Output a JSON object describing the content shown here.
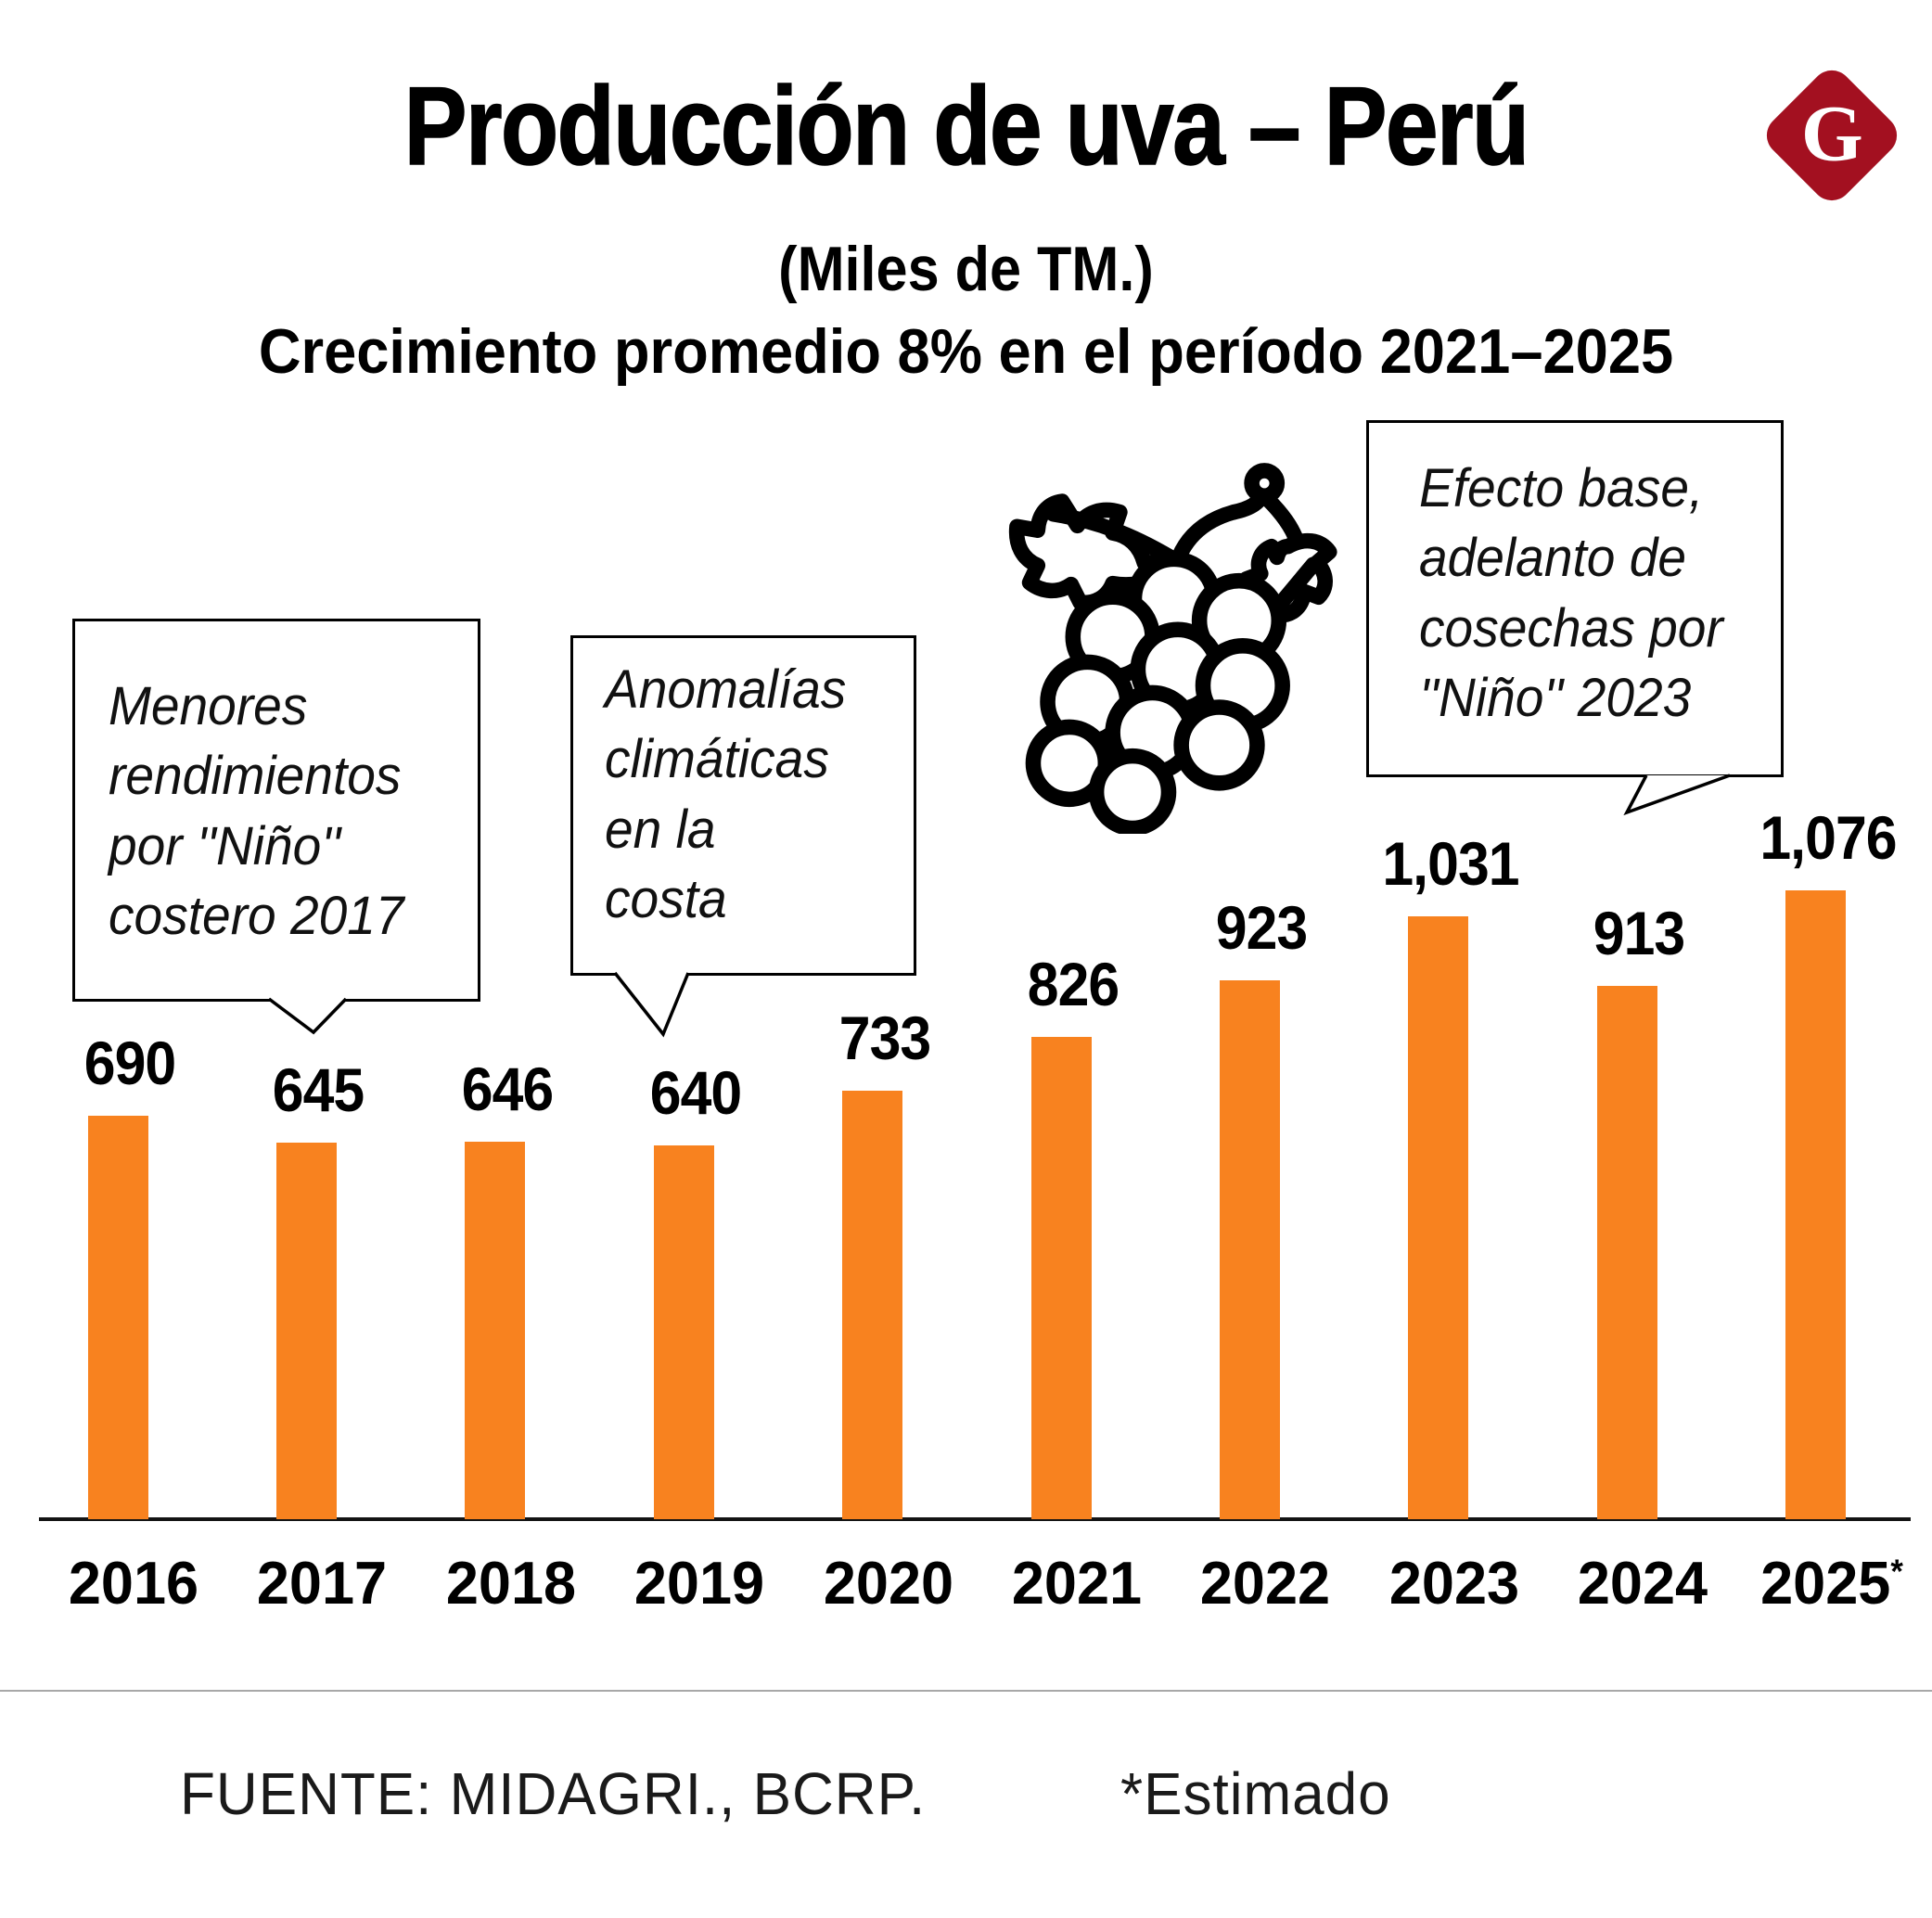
{
  "logo": {
    "letter": "G",
    "color": "#A31020"
  },
  "chart_data": {
    "type": "bar",
    "title": "Producción de uva – Perú",
    "subtitle": "(Miles de TM.)",
    "subtitle2": "Crecimiento promedio 8% en el período 2021–2025",
    "categories": [
      "2016",
      "2017",
      "2018",
      "2019",
      "2020",
      "2021",
      "2022",
      "2023",
      "2024",
      "2025*"
    ],
    "values": [
      690,
      645,
      646,
      640,
      733,
      826,
      923,
      1031,
      913,
      1076
    ],
    "value_labels": [
      "690",
      "645",
      "646",
      "640",
      "733",
      "826",
      "923",
      "1,031",
      "913",
      "1,076"
    ],
    "bar_color": "#F8821F",
    "ylim": [
      0,
      1100
    ],
    "grid": false,
    "legend": "none",
    "xlabel": "",
    "ylabel": "",
    "annotations": [
      {
        "text": "Menores\nrendimientos\npor ''Niño''\ncostero 2017"
      },
      {
        "text": "Anomalías\nclimáticas\nen la\ncosta"
      },
      {
        "text": "Efecto base,\nadelanto de\ncosechas por\n''Niño'' 2023"
      }
    ]
  },
  "footer": {
    "source": "FUENTE:  MIDAGRI., BCRP.",
    "note": "*Estimado"
  }
}
